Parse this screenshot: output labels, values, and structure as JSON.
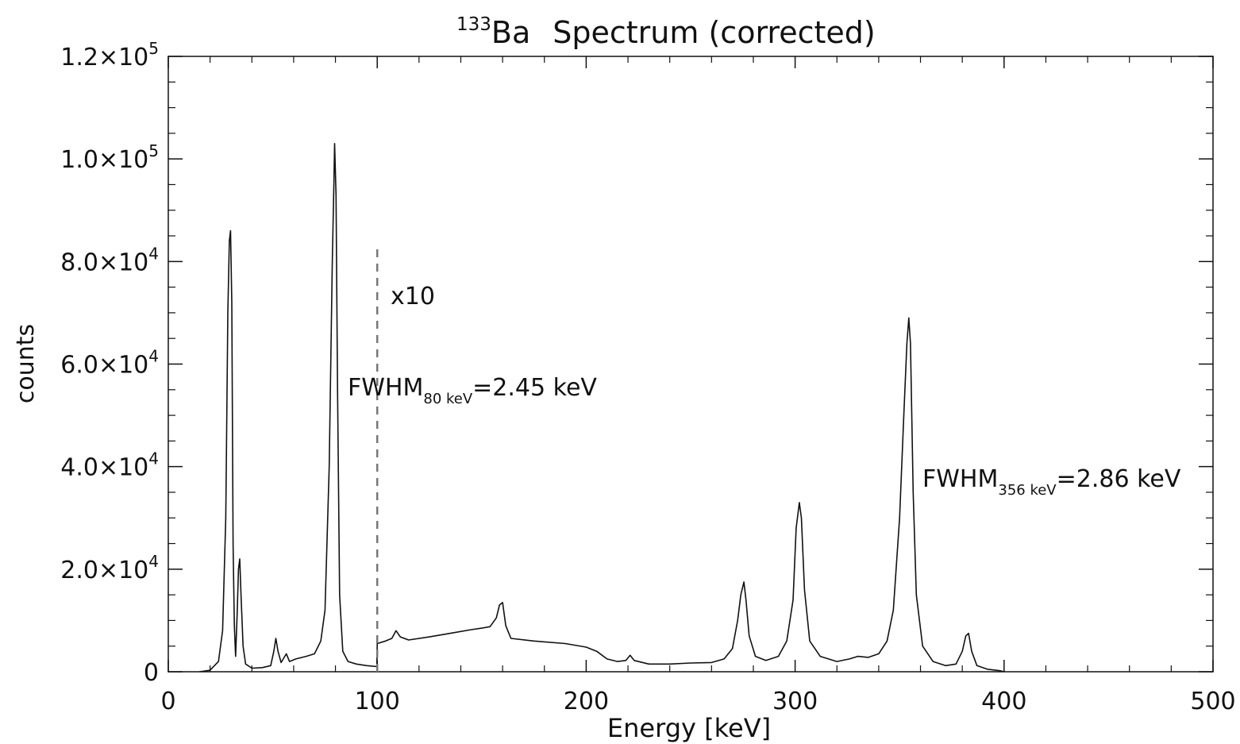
{
  "chart_data": {
    "type": "line",
    "title": {
      "sup": "133",
      "base": "Ba",
      "rest": "Spectrum (corrected)"
    },
    "xlabel": "Energy [keV]",
    "ylabel": "counts",
    "xlim": [
      0,
      500
    ],
    "ylim": [
      0,
      120000
    ],
    "x_ticks": [
      {
        "v": 0,
        "label": "0"
      },
      {
        "v": 100,
        "label": "100"
      },
      {
        "v": 200,
        "label": "200"
      },
      {
        "v": 300,
        "label": "300"
      },
      {
        "v": 400,
        "label": "400"
      },
      {
        "v": 500,
        "label": "500"
      }
    ],
    "y_ticks": [
      {
        "v": 0,
        "label": "0"
      },
      {
        "v": 20000,
        "mant": "2.0",
        "exp": "4"
      },
      {
        "v": 40000,
        "mant": "4.0",
        "exp": "4"
      },
      {
        "v": 60000,
        "mant": "6.0",
        "exp": "4"
      },
      {
        "v": 80000,
        "mant": "8.0",
        "exp": "4"
      },
      {
        "v": 100000,
        "mant": "1.0",
        "exp": "5"
      },
      {
        "v": 120000,
        "mant": "1.2",
        "exp": "5"
      }
    ],
    "scale_factor_label": "x10",
    "scale_boundary_keV": 100,
    "fwhm_annotations": [
      {
        "prefix": "FWHM",
        "sub": "80 keV",
        "value": "=2.45 keV"
      },
      {
        "prefix": "FWHM",
        "sub": "356 keV",
        "value": "=2.86 keV"
      }
    ],
    "series": [
      {
        "values": [
          [
            15,
            0
          ],
          [
            20,
            300
          ],
          [
            24,
            2000
          ],
          [
            26,
            8000
          ],
          [
            27.5,
            30000
          ],
          [
            28.5,
            70000
          ],
          [
            29.2,
            84000
          ],
          [
            29.8,
            86000
          ],
          [
            30.4,
            72000
          ],
          [
            31,
            25000
          ],
          [
            31.6,
            9000
          ],
          [
            32.2,
            3000
          ],
          [
            33,
            12000
          ],
          [
            33.6,
            20000
          ],
          [
            34.2,
            22000
          ],
          [
            34.8,
            15000
          ],
          [
            35.8,
            5000
          ],
          [
            37,
            1500
          ],
          [
            40,
            700
          ],
          [
            45,
            800
          ],
          [
            49,
            1200
          ],
          [
            50.5,
            4000
          ],
          [
            51.5,
            6500
          ],
          [
            52.5,
            4000
          ],
          [
            54,
            1800
          ],
          [
            56.5,
            3500
          ],
          [
            58,
            2000
          ],
          [
            61,
            2500
          ],
          [
            66,
            3000
          ],
          [
            70,
            3500
          ],
          [
            73,
            6000
          ],
          [
            75,
            12000
          ],
          [
            77,
            40000
          ],
          [
            78.5,
            80000
          ],
          [
            79.3,
            96000
          ],
          [
            79.6,
            103000
          ],
          [
            80.3,
            93000
          ],
          [
            81,
            55000
          ],
          [
            82,
            15000
          ],
          [
            83.5,
            4000
          ],
          [
            86,
            2000
          ],
          [
            90,
            1500
          ],
          [
            95,
            1200
          ],
          [
            99.8,
            1000
          ],
          [
            100,
            5500
          ],
          [
            104,
            6000
          ],
          [
            107,
            6500
          ],
          [
            109,
            8000
          ],
          [
            111,
            6800
          ],
          [
            115,
            6200
          ],
          [
            125,
            6800
          ],
          [
            135,
            7500
          ],
          [
            145,
            8200
          ],
          [
            150,
            8500
          ],
          [
            154,
            8800
          ],
          [
            157,
            10500
          ],
          [
            158.5,
            13000
          ],
          [
            160,
            13500
          ],
          [
            161.5,
            9000
          ],
          [
            164,
            6500
          ],
          [
            175,
            6000
          ],
          [
            190,
            5500
          ],
          [
            200,
            4800
          ],
          [
            205,
            4000
          ],
          [
            210,
            2500
          ],
          [
            215,
            2000
          ],
          [
            219,
            2200
          ],
          [
            221,
            3200
          ],
          [
            223,
            2200
          ],
          [
            230,
            1500
          ],
          [
            240,
            1500
          ],
          [
            250,
            1700
          ],
          [
            260,
            1800
          ],
          [
            266,
            2500
          ],
          [
            270,
            4500
          ],
          [
            272.5,
            10000
          ],
          [
            274,
            15000
          ],
          [
            275.5,
            17500
          ],
          [
            276.5,
            14000
          ],
          [
            278,
            7000
          ],
          [
            281,
            3000
          ],
          [
            286,
            2200
          ],
          [
            292,
            3000
          ],
          [
            296,
            6000
          ],
          [
            299,
            14000
          ],
          [
            300.5,
            28000
          ],
          [
            302,
            33000
          ],
          [
            303,
            30000
          ],
          [
            304.5,
            16000
          ],
          [
            307,
            6000
          ],
          [
            312,
            3000
          ],
          [
            320,
            2000
          ],
          [
            326,
            2500
          ],
          [
            330,
            3000
          ],
          [
            335,
            2800
          ],
          [
            340,
            3500
          ],
          [
            344,
            6000
          ],
          [
            347,
            12000
          ],
          [
            350,
            30000
          ],
          [
            352,
            50000
          ],
          [
            353.5,
            64000
          ],
          [
            354.4,
            69000
          ],
          [
            355.2,
            64000
          ],
          [
            356.5,
            35000
          ],
          [
            358,
            15000
          ],
          [
            361,
            5000
          ],
          [
            366,
            2000
          ],
          [
            372,
            1200
          ],
          [
            377,
            1500
          ],
          [
            380,
            4000
          ],
          [
            381.7,
            7000
          ],
          [
            383,
            7500
          ],
          [
            384.5,
            4000
          ],
          [
            387,
            1200
          ],
          [
            392,
            500
          ],
          [
            398,
            200
          ],
          [
            400,
            0
          ]
        ]
      }
    ]
  }
}
